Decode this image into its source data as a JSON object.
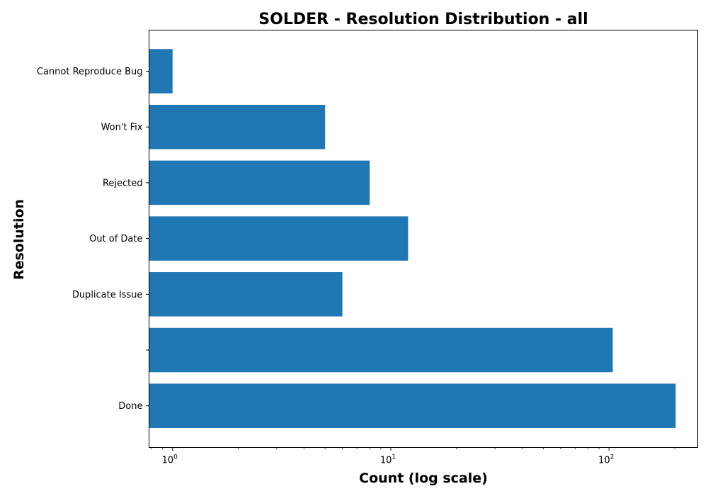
{
  "chart_data": {
    "type": "bar",
    "orientation": "horizontal",
    "title": "SOLDER - Resolution Distribution - all",
    "xlabel": "Count (log scale)",
    "ylabel": "Resolution",
    "xscale": "log",
    "xlim": [
      0.78,
      255
    ],
    "categories": [
      "Cannot Reproduce Bug",
      "Won't Fix",
      "Rejected",
      "Out of Date",
      "Duplicate Issue",
      "",
      "Done"
    ],
    "values": [
      1,
      5,
      8,
      12,
      6,
      104,
      202
    ],
    "x_ticks": [
      {
        "base": "10",
        "exp": "0",
        "value": 1
      },
      {
        "base": "10",
        "exp": "1",
        "value": 10
      },
      {
        "base": "10",
        "exp": "2",
        "value": 100
      }
    ],
    "bar_color": "#1f77b4",
    "grid": false,
    "legend": "none"
  }
}
